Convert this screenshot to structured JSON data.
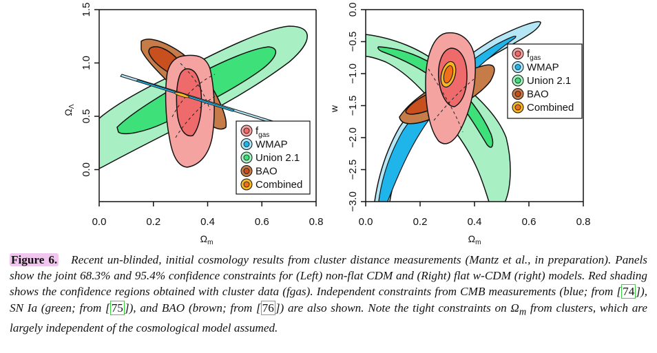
{
  "caption": {
    "figure_label": "Figure 6",
    "figure_label_punct": ".",
    "seg1": "Recent un-blinded, initial cosmology results from cluster distance measurements (Mantz et al., in preparation). Panels show the joint 68.3% and 95.4% confidence constraints for (Left) non-flat CDM and (Right) flat w-CDM (right) models. Red shading shows the confidence regions obtained with cluster data (fgas). Independent constraints from CMB measurements (blue; from [",
    "cite1": "74",
    "seg2": "]), SN Ia (green; from [",
    "cite2": "75",
    "seg3": "]), and BAO (brown; from [",
    "cite3": "76",
    "seg4": "]) are also shown. Note the tight constraints on Ω",
    "seg4_sub": "m",
    "seg5": " from clusters, which are largely independent of the cosmological model assumed."
  },
  "legend": [
    {
      "label": "f",
      "sub": "gas",
      "outer": "#f4a3a0",
      "inner": "#ef6b6b"
    },
    {
      "label": "WMAP",
      "sub": "",
      "outer": "#b5e6f5",
      "inner": "#1fb4ea"
    },
    {
      "label": "Union 2.1",
      "sub": "",
      "outer": "#a8f0c4",
      "inner": "#3ee07a"
    },
    {
      "label": "BAO",
      "sub": "",
      "outer": "#c57c48",
      "inner": "#c8501e"
    },
    {
      "label": "Combined",
      "sub": "",
      "outer": "#f5b820",
      "inner": "#f0701a"
    }
  ],
  "chart_data": [
    {
      "type": "contour",
      "panel": "left",
      "title": "",
      "xlabel": "Ω_m",
      "ylabel": "Ω_Λ",
      "xlim": [
        0.0,
        0.8
      ],
      "ylim": [
        -0.3,
        1.5
      ],
      "xticks": [
        "0.0",
        "0.2",
        "0.4",
        "0.6",
        "0.8"
      ],
      "yticks": [
        "0.0",
        "0.5",
        "1.0",
        "1.5"
      ],
      "legend_position": "bottom-right",
      "series": [
        {
          "name": "Union 2.1",
          "levels": [
            "95.4%",
            "68.3%"
          ],
          "center": [
            0.28,
            0.72
          ],
          "orientation": "diagonal, rising"
        },
        {
          "name": "BAO",
          "levels": [
            "95.4%",
            "68.3%"
          ],
          "center": [
            0.3,
            0.8
          ],
          "orientation": "diagonal, falling"
        },
        {
          "name": "fgas",
          "levels": [
            "95.4%",
            "68.3%"
          ],
          "center": [
            0.31,
            0.58
          ],
          "extent_95": {
            "x": [
              0.22,
              0.4
            ],
            "y": [
              0.02,
              1.08
            ]
          },
          "extent_68": {
            "x": [
              0.26,
              0.36
            ],
            "y": [
              0.31,
              0.94
            ]
          }
        },
        {
          "name": "WMAP",
          "levels": [
            "95.4%",
            "68.3%"
          ],
          "line_from": [
            0.08,
            0.89
          ],
          "line_to": [
            0.74,
            0.37
          ]
        },
        {
          "name": "Combined",
          "levels": [
            "95.4%",
            "68.3%"
          ],
          "center": [
            0.3,
            0.71
          ]
        }
      ]
    },
    {
      "type": "contour",
      "panel": "right",
      "title": "",
      "xlabel": "Ω_m",
      "ylabel": "w",
      "xlim": [
        0.0,
        0.8
      ],
      "ylim": [
        -3.0,
        0.0
      ],
      "xticks": [
        "0.0",
        "0.2",
        "0.4",
        "0.6",
        "0.8"
      ],
      "yticks": [
        "-3.0",
        "-2.5",
        "-2.0",
        "-1.5",
        "-1.0",
        "-0.5",
        "0.0"
      ],
      "legend_position": "top-right",
      "series": [
        {
          "name": "WMAP",
          "levels": [
            "95.4%",
            "68.3%"
          ],
          "shape": "arc from (0.04,-3.0) to (0.64,-0.2)"
        },
        {
          "name": "Union 2.1",
          "levels": [
            "95.4%",
            "68.3%"
          ],
          "shape": "arc from (0.0,-0.5) to (0.5,-3.0)"
        },
        {
          "name": "BAO",
          "levels": [
            "95.4%",
            "68.3%"
          ],
          "center": [
            0.3,
            -1.25
          ]
        },
        {
          "name": "fgas",
          "levels": [
            "95.4%",
            "68.3%"
          ],
          "center": [
            0.3,
            -1.1
          ],
          "extent_95": {
            "x": [
              0.22,
              0.4
            ],
            "y": [
              -2.0,
              -0.35
            ]
          },
          "extent_68": {
            "x": [
              0.25,
              0.35
            ],
            "y": [
              -1.5,
              -0.6
            ]
          }
        },
        {
          "name": "Combined",
          "levels": [
            "95.4%",
            "68.3%"
          ],
          "center": [
            0.3,
            -1.0
          ],
          "extent_95": {
            "x": [
              0.27,
              0.33
            ],
            "y": [
              -1.25,
              -0.8
            ]
          }
        }
      ]
    }
  ]
}
